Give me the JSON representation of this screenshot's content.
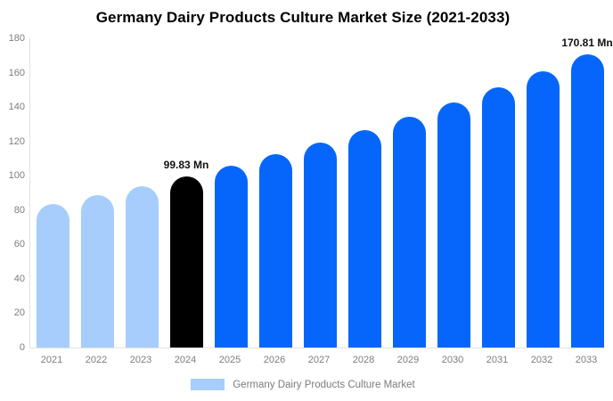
{
  "title": "Germany Dairy Products Culture Market Size (2021-2033)",
  "chart_data": {
    "type": "bar",
    "title": "Germany Dairy Products Culture Market Size (2021-2033)",
    "categories": [
      "2021",
      "2022",
      "2023",
      "2024",
      "2025",
      "2026",
      "2027",
      "2028",
      "2029",
      "2030",
      "2031",
      "2032",
      "2033"
    ],
    "values": [
      83.5,
      88.6,
      94.0,
      99.83,
      106.0,
      112.5,
      119.4,
      126.8,
      134.6,
      142.8,
      151.6,
      161.0,
      170.81
    ],
    "bar_colors": [
      "#a6cdfb",
      "#a6cdfb",
      "#a6cdfb",
      "#000000",
      "#0666fb",
      "#0666fb",
      "#0666fb",
      "#0666fb",
      "#0666fb",
      "#0666fb",
      "#0666fb",
      "#0666fb",
      "#0666fb"
    ],
    "annotations": [
      {
        "index": 3,
        "text": "99.83 Mn"
      },
      {
        "index": 12,
        "text": "170.81 Mn"
      }
    ],
    "xlabel": "",
    "ylabel": "",
    "ylim": [
      0,
      180
    ],
    "yticks": [
      0,
      20,
      40,
      60,
      80,
      100,
      120,
      140,
      160,
      180
    ],
    "grid": false,
    "legend_position": "bottom",
    "legend": [
      {
        "label": "Germany Dairy Products Culture Market",
        "color": "#a6cdfb"
      }
    ]
  },
  "colors": {
    "axis_line": "#e3e3e3",
    "tick_text": "#7d7d7d",
    "annotation_text": "#111111",
    "title_text": "#000000",
    "background": "#ffffff"
  }
}
